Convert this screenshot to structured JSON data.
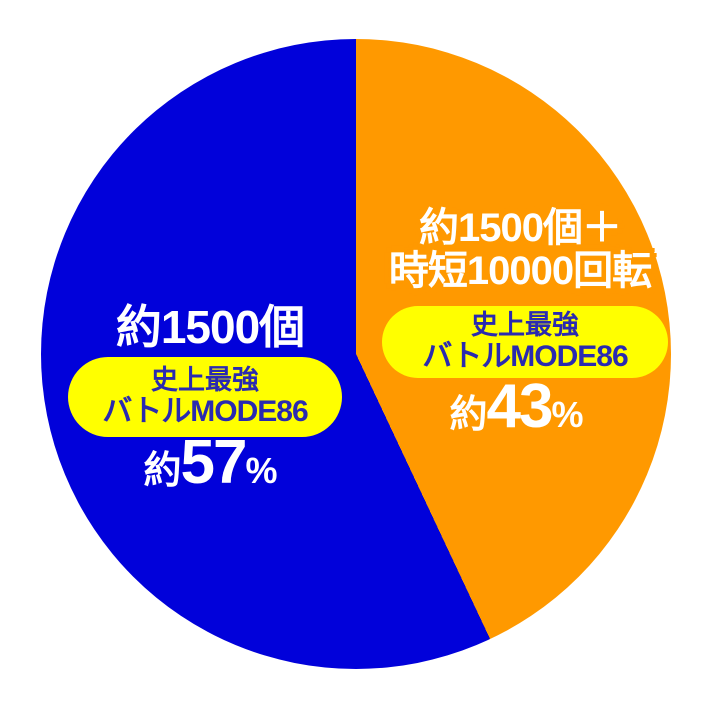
{
  "chart_data": {
    "type": "pie",
    "title": "",
    "start_angle": "12-oclock",
    "direction": "clockwise",
    "legend": "none",
    "background": "#FFFFFF",
    "badge_bg_color": "#FFFF00",
    "badge_text_color": "#2A2AB0",
    "label_text_color": "#FFFFFF",
    "slices": [
      {
        "name": "orange-slice",
        "color": "#FF9900",
        "value_pct": 43,
        "amount_line1": "約1500個＋",
        "amount_line2": "時短10000回転",
        "badge_line1": "史上最強",
        "badge_line2": "バトルMODE86",
        "pct_prefix": "約",
        "pct_number": "43",
        "pct_unit": "%",
        "pct_text": "約43%"
      },
      {
        "name": "blue-slice",
        "color": "#0101DA",
        "value_pct": 57,
        "amount_line1": "約1500個",
        "badge_line1": "史上最強",
        "badge_line2": "バトルMODE86",
        "pct_prefix": "約",
        "pct_number": "57",
        "pct_unit": "%",
        "pct_text": "約57%"
      }
    ]
  }
}
